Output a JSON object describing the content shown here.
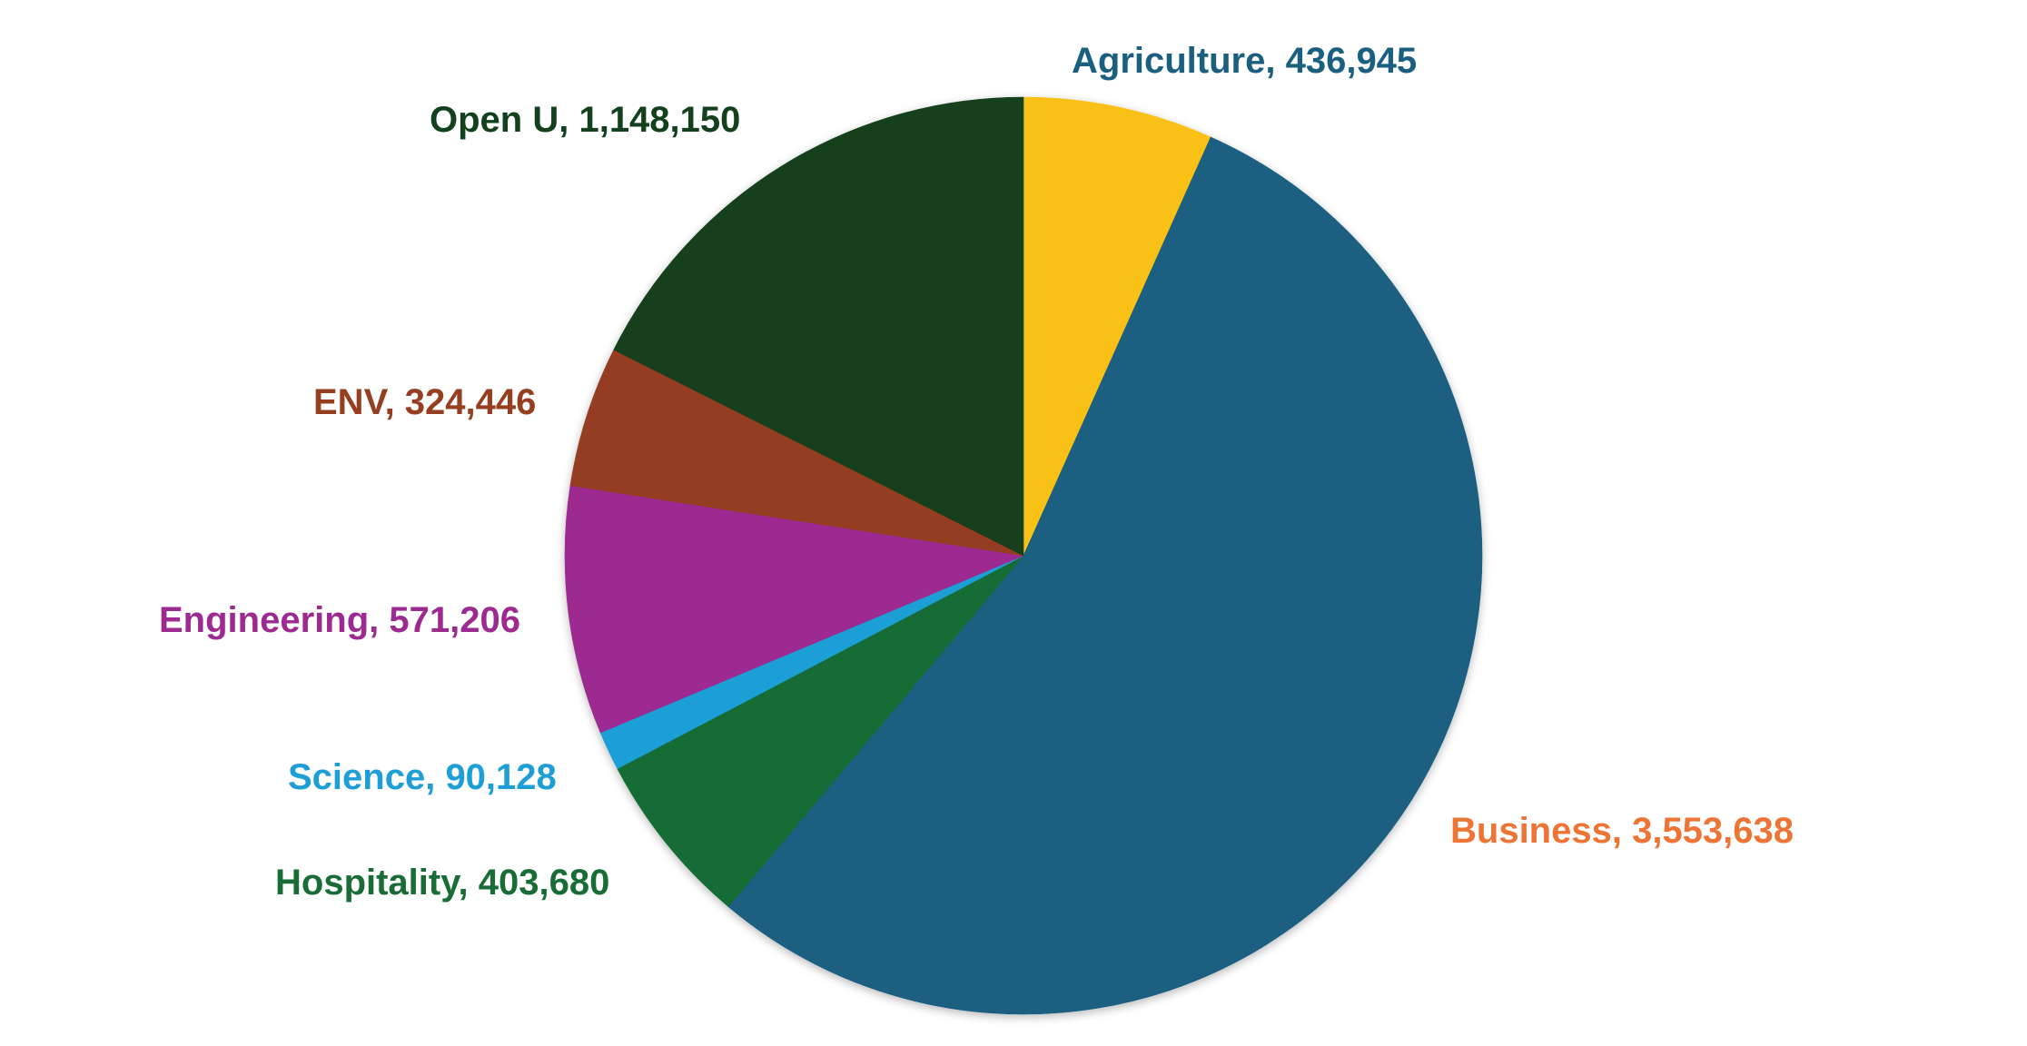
{
  "chart_data": {
    "type": "pie",
    "title": "",
    "start_angle_deg": 0,
    "direction": "clockwise",
    "slices": [
      {
        "name": "Agriculture",
        "value": 436945,
        "color": "#F9C013",
        "label_text": "Agriculture, 436,945",
        "label_color": "#1A5E80"
      },
      {
        "name": "Business",
        "value": 3553638,
        "color": "#1A5E80",
        "label_text": "Business, 3,553,638",
        "label_color": "#EE7435"
      },
      {
        "name": "Hospitality",
        "value": 403680,
        "color": "#186C35",
        "label_text": "Hospitality, 403,680",
        "label_color": "#186C35"
      },
      {
        "name": "Science",
        "value": 90128,
        "color": "#1D9ED6",
        "label_text": "Science, 90,128",
        "label_color": "#1D9ED6"
      },
      {
        "name": "Engineering",
        "value": 571206,
        "color": "#9C2A91",
        "label_text": "Engineering, 571,206",
        "label_color": "#9C2A91"
      },
      {
        "name": "ENV",
        "value": 324446,
        "color": "#953E20",
        "label_text": "ENV, 324,446",
        "label_color": "#953E20"
      },
      {
        "name": "Open U",
        "value": 1148150,
        "color": "#13401D",
        "label_text": "Open U, 1,148,150",
        "label_color": "#13401D"
      }
    ]
  }
}
